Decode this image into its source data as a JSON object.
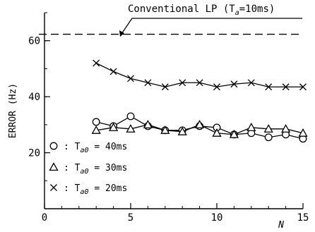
{
  "chart_data": {
    "type": "line",
    "title": "",
    "xlabel": "N",
    "ylabel": "ERROR (Hz)",
    "xlim": [
      0,
      15
    ],
    "ylim": [
      0,
      70
    ],
    "grid": false,
    "x_ticks": [
      0,
      5,
      10,
      15
    ],
    "x_tick_labels": [
      "0",
      "5",
      "10",
      "15"
    ],
    "y_ticks": [
      20,
      40,
      60
    ],
    "y_tick_labels": [
      "20",
      "40",
      "60"
    ],
    "reference_line": {
      "label": "Conventional LP (T",
      "label_sub": "a",
      "label_rest": "=10ms)",
      "value": 62.3,
      "style": "dashed"
    },
    "x": [
      3,
      4,
      5,
      6,
      7,
      8,
      9,
      10,
      11,
      12,
      13,
      14,
      15
    ],
    "series": [
      {
        "marker": "circle",
        "legend_symbol": "○",
        "legend_label": ": T",
        "legend_sub": "a0",
        "legend_value": "= 40ms",
        "values": [
          31,
          29.5,
          33,
          29.5,
          28,
          28,
          29.5,
          29,
          26.5,
          27,
          25.5,
          26.5,
          25
        ]
      },
      {
        "marker": "triangle",
        "legend_symbol": "△",
        "legend_label": ": T",
        "legend_sub": "a0",
        "legend_value": "= 30ms",
        "values": [
          28,
          29,
          28.5,
          30,
          28,
          27.5,
          30,
          27,
          26.5,
          29,
          28.5,
          28.5,
          27
        ]
      },
      {
        "marker": "x",
        "legend_symbol": "×",
        "legend_label": ": T",
        "legend_sub": "a0",
        "legend_value": "= 20ms",
        "values": [
          52,
          49,
          46.5,
          45,
          43.5,
          45,
          45,
          43.5,
          44.5,
          45,
          43.5,
          43.5,
          43.5
        ]
      }
    ]
  }
}
